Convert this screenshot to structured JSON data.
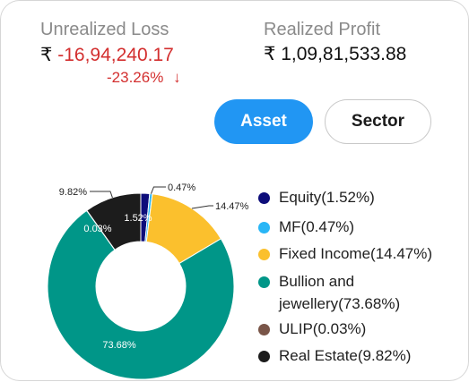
{
  "summary": {
    "unrealized_label": "Unrealized Loss",
    "rupee": "₹",
    "unrealized_value": "-16,94,240.17",
    "unrealized_change": "-23.26%",
    "down_arrow": "↓",
    "realized_label": "Realized Profit",
    "realized_value": "₹ 1,09,81,533.88"
  },
  "toggle": {
    "asset_label": "Asset",
    "sector_label": "Sector",
    "active": "asset"
  },
  "legend": [
    {
      "label": "Equity(1.52%)",
      "color": "#0d0d7a"
    },
    {
      "label": "MF(0.47%)",
      "color": "#29b6f6"
    },
    {
      "label": "Fixed Income(14.47%)",
      "color": "#fbc02d"
    },
    {
      "label": "Bullion and jewellery(73.68%)",
      "color": "#009688"
    },
    {
      "label": "ULIP(0.03%)",
      "color": "#795548"
    },
    {
      "label": "Real Estate(9.82%)",
      "color": "#1c1c1c"
    }
  ],
  "chart_data": {
    "type": "pie",
    "categories": [
      "Equity",
      "MF",
      "Fixed Income",
      "Bullion and jewellery",
      "ULIP",
      "Real Estate"
    ],
    "values": [
      1.52,
      0.47,
      14.47,
      73.68,
      0.03,
      9.82
    ],
    "colors": [
      "#0d0d7a",
      "#29b6f6",
      "#fbc02d",
      "#009688",
      "#795548",
      "#1c1c1c"
    ],
    "slice_labels": [
      "1.52%",
      "0.47%",
      "14.47%",
      "73.68%",
      "0.03%",
      "9.82%"
    ],
    "donut": true
  }
}
